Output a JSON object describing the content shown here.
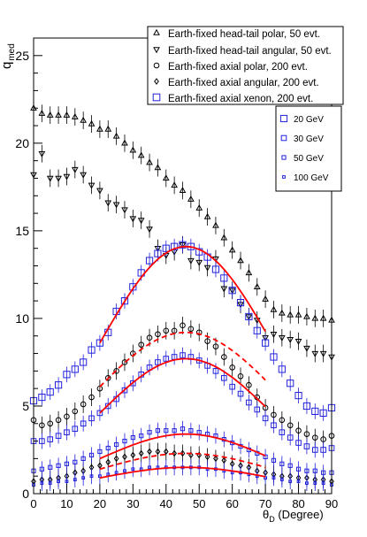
{
  "chart_data": {
    "type": "scatter",
    "ylabel": {
      "main": "q",
      "sub": "med"
    },
    "xlabel": {
      "main": "θ",
      "sub": "D",
      "suffix": " (Degree)"
    },
    "xlim": [
      0,
      90
    ],
    "ylim": [
      0,
      26
    ],
    "xticks": [
      0,
      10,
      20,
      30,
      40,
      50,
      60,
      70,
      80,
      90
    ],
    "yticks": [
      0,
      5,
      10,
      15,
      20,
      25
    ],
    "grid": false,
    "legend_position": "top-right",
    "colors": {
      "black": "#000000",
      "blue": "#2222dd",
      "red": "#ff0000"
    },
    "x": [
      0,
      2.5,
      5,
      7.5,
      10,
      12.5,
      15,
      17.5,
      20,
      22.5,
      25,
      27.5,
      30,
      32.5,
      35,
      37.5,
      40,
      42.5,
      45,
      47.5,
      50,
      52.5,
      55,
      57.5,
      60,
      62.5,
      65,
      67.5,
      70,
      72.5,
      75,
      77.5,
      80,
      82.5,
      85,
      87.5,
      90
    ],
    "legend": [
      {
        "marker": "triangle-up",
        "label": "Earth-fixed head-tail polar, 50 evt."
      },
      {
        "marker": "triangle-down",
        "label": "Earth-fixed head-tail angular, 50 evt."
      },
      {
        "marker": "circle",
        "label": "Earth-fixed axial polar, 200 evt."
      },
      {
        "marker": "diamond",
        "label": "Earth-fixed axial angular, 200 evt."
      },
      {
        "marker": "square-blue",
        "label": "Earth-fixed axial xenon, 200 evt."
      }
    ],
    "legend2": [
      {
        "size": "l",
        "label": "20 GeV"
      },
      {
        "size": "m",
        "label": "30 GeV"
      },
      {
        "size": "s",
        "label": "50 GeV"
      },
      {
        "size": "xs",
        "label": "100 GeV"
      }
    ],
    "series": [
      {
        "name": "Earth-fixed head-tail polar, 50 evt.",
        "marker": "triangle-up",
        "values": [
          22.0,
          21.7,
          21.6,
          21.6,
          21.6,
          21.5,
          21.3,
          21.1,
          20.8,
          20.8,
          20.4,
          20.0,
          19.6,
          19.3,
          18.9,
          18.6,
          18.0,
          17.6,
          17.3,
          16.8,
          16.3,
          15.8,
          15.3,
          14.6,
          13.9,
          13.3,
          12.6,
          11.8,
          11.1,
          10.5,
          10.3,
          10.2,
          10.2,
          10.1,
          10.0,
          10.0,
          9.9
        ]
      },
      {
        "name": "Earth-fixed head-tail angular, 50 evt.",
        "marker": "triangle-down",
        "values": [
          18.2,
          19.4,
          18.0,
          18.0,
          18.1,
          18.5,
          18.2,
          17.6,
          17.3,
          16.6,
          16.5,
          16.2,
          15.7,
          15.6,
          15.1,
          14.0,
          13.6,
          13.8,
          14.2,
          13.3,
          13.2,
          12.9,
          13.4,
          11.7,
          11.6,
          10.8,
          10.1,
          9.9,
          8.9,
          9.1,
          8.9,
          8.8,
          8.7,
          8.3,
          8.0,
          8.0,
          7.8
        ]
      },
      {
        "name": "Earth-fixed axial polar, 200 evt.",
        "marker": "circle",
        "values": [
          4.2,
          3.9,
          4.0,
          4.2,
          4.4,
          4.7,
          5.1,
          5.5,
          6.0,
          6.6,
          7.0,
          7.5,
          8.0,
          8.5,
          8.9,
          9.1,
          9.3,
          9.3,
          9.6,
          9.4,
          9.2,
          8.7,
          8.4,
          7.8,
          7.2,
          6.7,
          6.2,
          5.5,
          4.9,
          4.5,
          4.2,
          3.9,
          3.6,
          3.4,
          3.2,
          3.1,
          3.3
        ]
      },
      {
        "name": "Earth-fixed axial angular, 200 evt.",
        "marker": "diamond",
        "values": [
          0.7,
          0.8,
          0.8,
          0.9,
          1.0,
          1.2,
          1.3,
          1.5,
          1.6,
          1.8,
          2.0,
          2.1,
          2.2,
          2.3,
          2.4,
          2.4,
          2.4,
          2.3,
          2.3,
          2.2,
          2.2,
          2.1,
          2.0,
          1.9,
          1.7,
          1.6,
          1.5,
          1.3,
          1.2,
          1.1,
          1.0,
          1.0,
          0.9,
          0.9,
          0.8,
          0.8,
          0.7
        ]
      },
      {
        "name": "Xenon 20 GeV",
        "marker": "square-l",
        "values": [
          5.3,
          5.5,
          5.8,
          6.2,
          6.8,
          7.1,
          7.5,
          8.2,
          8.6,
          9.2,
          10.4,
          11.0,
          11.8,
          12.6,
          13.3,
          13.7,
          14.0,
          14.1,
          14.2,
          14.1,
          13.8,
          13.5,
          12.8,
          12.3,
          11.6,
          10.9,
          10.1,
          9.3,
          8.6,
          7.8,
          7.1,
          6.3,
          5.6,
          5.0,
          4.7,
          4.6,
          4.9
        ]
      },
      {
        "name": "Xenon 30 GeV",
        "marker": "square-m",
        "values": [
          3.0,
          3.0,
          3.1,
          3.3,
          3.5,
          3.7,
          4.0,
          4.3,
          4.6,
          5.0,
          5.4,
          5.9,
          6.3,
          6.8,
          7.2,
          7.5,
          7.7,
          7.8,
          7.9,
          7.8,
          7.6,
          7.3,
          7.0,
          6.6,
          6.1,
          5.7,
          5.2,
          4.8,
          4.3,
          3.9,
          3.5,
          3.2,
          2.9,
          2.7,
          2.5,
          2.5,
          2.6
        ]
      },
      {
        "name": "Xenon 50 GeV",
        "marker": "square-s",
        "values": [
          1.3,
          1.4,
          1.5,
          1.6,
          1.7,
          1.8,
          2.0,
          2.2,
          2.4,
          2.6,
          2.8,
          3.0,
          3.2,
          3.3,
          3.5,
          3.6,
          3.6,
          3.6,
          3.7,
          3.6,
          3.5,
          3.4,
          3.3,
          3.1,
          2.9,
          2.7,
          2.5,
          2.3,
          2.1,
          1.9,
          1.7,
          1.6,
          1.4,
          1.3,
          1.3,
          1.2,
          1.2
        ]
      },
      {
        "name": "Xenon 100 GeV",
        "marker": "square-xs",
        "values": [
          0.5,
          0.6,
          0.6,
          0.7,
          0.7,
          0.8,
          0.9,
          1.0,
          1.0,
          1.1,
          1.2,
          1.3,
          1.4,
          1.4,
          1.5,
          1.5,
          1.5,
          1.5,
          1.5,
          1.5,
          1.5,
          1.4,
          1.4,
          1.3,
          1.2,
          1.2,
          1.1,
          1.0,
          0.9,
          0.9,
          0.8,
          0.7,
          0.7,
          0.6,
          0.6,
          0.6,
          0.5
        ]
      }
    ],
    "fits": [
      {
        "style": "solid",
        "xmin": 20,
        "xmax": 70,
        "peak_x": 46,
        "peak_y": 14.1,
        "end_y": 8.6
      },
      {
        "style": "dashed",
        "xmin": 20,
        "xmax": 70,
        "peak_x": 46,
        "peak_y": 9.2,
        "end_y": 6.1
      },
      {
        "style": "solid",
        "xmin": 20,
        "xmax": 70,
        "peak_x": 46,
        "peak_y": 7.7,
        "end_y": 4.6
      },
      {
        "style": "solid",
        "xmin": 20,
        "xmax": 70,
        "peak_x": 46,
        "peak_y": 3.4,
        "end_y": 2.0
      },
      {
        "style": "dashed",
        "xmin": 20,
        "xmax": 70,
        "peak_x": 46,
        "peak_y": 2.3,
        "end_y": 1.4
      },
      {
        "style": "solid",
        "xmin": 20,
        "xmax": 70,
        "peak_x": 46,
        "peak_y": 1.5,
        "end_y": 0.9
      }
    ]
  }
}
